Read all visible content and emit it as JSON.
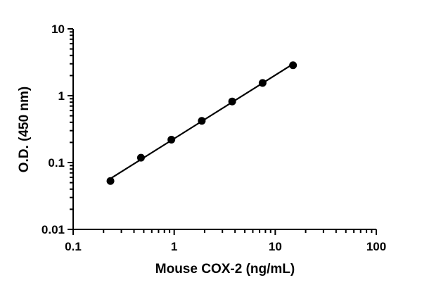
{
  "chart_data": {
    "type": "scatter",
    "xlabel": "Mouse COX-2 (ng/mL)",
    "ylabel": "O.D. (450 nm)",
    "x_scale": "log",
    "y_scale": "log",
    "xlim": [
      0.1,
      100
    ],
    "ylim": [
      0.01,
      10
    ],
    "x_ticks": [
      "0.1",
      "1",
      "10",
      "100"
    ],
    "y_ticks": [
      "0.01",
      "0.1",
      "1",
      "10"
    ],
    "grid": false,
    "series": [
      {
        "x": [
          0.234,
          0.469,
          0.938,
          1.875,
          3.75,
          7.5,
          15
        ],
        "y": [
          0.053,
          0.118,
          0.22,
          0.42,
          0.82,
          1.55,
          2.85
        ],
        "fit": "line",
        "color": "#000000"
      }
    ]
  }
}
